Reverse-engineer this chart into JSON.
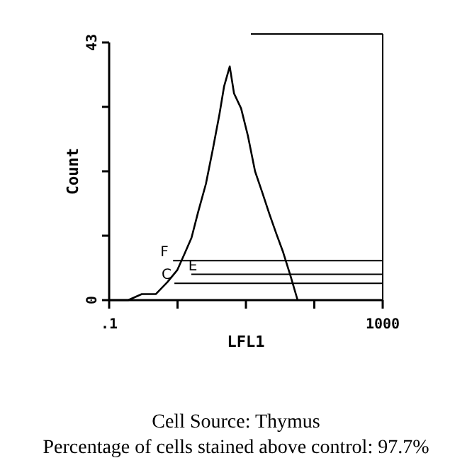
{
  "chart_data": {
    "type": "line",
    "xlabel": "LFL1",
    "ylabel": "Count",
    "log": "x",
    "xlim": [
      0.1,
      1000
    ],
    "ylim": [
      0,
      43
    ],
    "xticks": [
      {
        "value": 0.1,
        "label": ".1"
      },
      {
        "value": 1,
        "label": null
      },
      {
        "value": 10,
        "label": null
      },
      {
        "value": 100,
        "label": null
      },
      1000
    ],
    "yticks": [
      0,
      {
        "value": 10.75,
        "label": null
      },
      {
        "value": 21.5,
        "label": null
      },
      {
        "value": 32.25,
        "label": null
      },
      43
    ],
    "grid": false,
    "legend": false,
    "marker": "none",
    "line_style": "solid",
    "series": [
      {
        "color": "#000000",
        "x": [
          0.1,
          0.19,
          0.3,
          0.48,
          0.71,
          0.99,
          1.25,
          1.6,
          2.0,
          2.6,
          3.3,
          4.1,
          4.8,
          5.8,
          6.7,
          8.5,
          10.7,
          13.6,
          17.3,
          22,
          28,
          35,
          45,
          57
        ],
        "values": [
          0,
          0,
          1,
          1,
          3,
          5,
          7.6,
          10.4,
          14.7,
          19.4,
          25.3,
          31,
          35.7,
          39,
          34.5,
          32,
          27.4,
          21.5,
          18,
          14.4,
          11,
          8,
          4,
          0
        ]
      },
      {
        "name": "F",
        "color": "#000000",
        "x": [
          0.86,
          1000
        ],
        "values": [
          6.6,
          6.6
        ]
      },
      {
        "name": "E",
        "color": "#000000",
        "x": [
          1.59,
          1000
        ],
        "values": [
          4.3,
          4.3
        ]
      },
      {
        "name": "C",
        "color": "#000000",
        "x": [
          0.9,
          1000
        ],
        "values": [
          2.8,
          2.8
        ]
      }
    ],
    "annotations": [
      "Cell Source: Thymus",
      "Percentage of cells stained above control: 97.7%"
    ]
  }
}
